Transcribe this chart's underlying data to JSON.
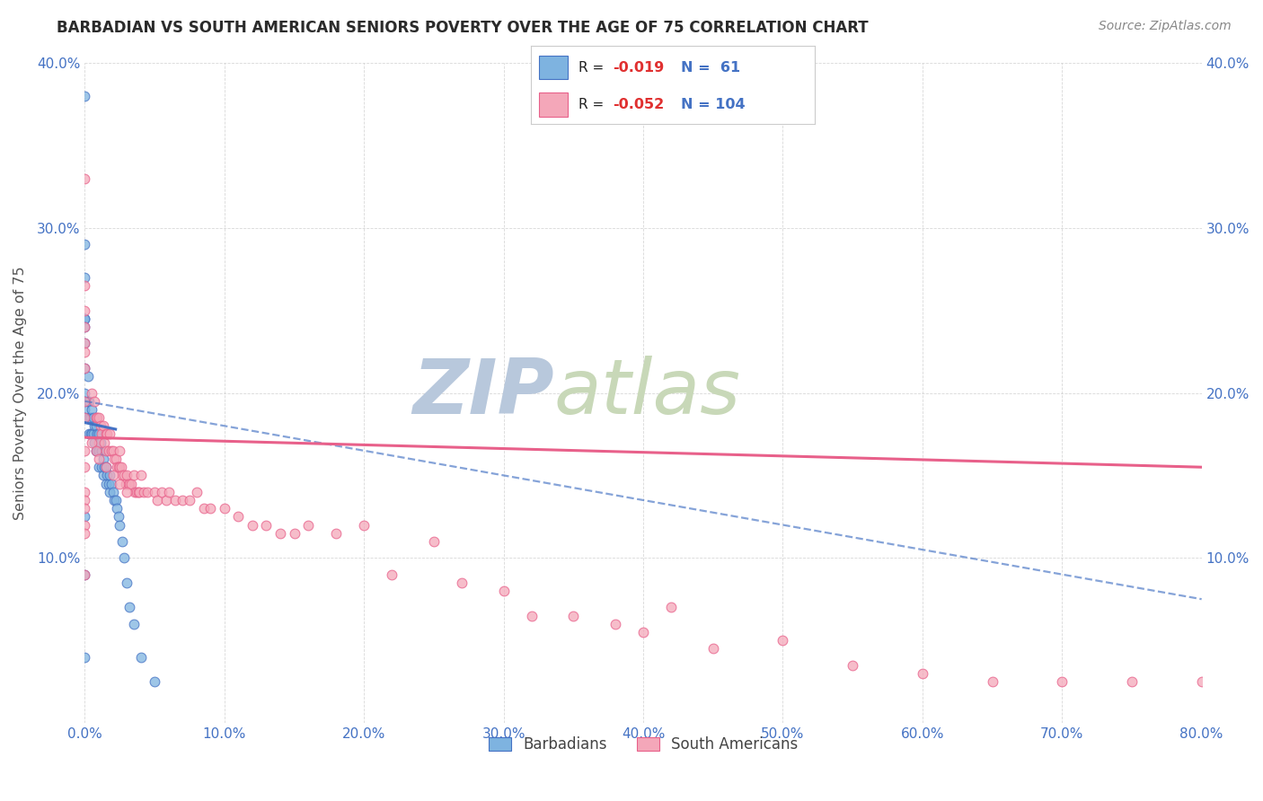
{
  "title": "BARBADIAN VS SOUTH AMERICAN SENIORS POVERTY OVER THE AGE OF 75 CORRELATION CHART",
  "source_text": "Source: ZipAtlas.com",
  "ylabel": "Seniors Poverty Over the Age of 75",
  "xlim": [
    0.0,
    0.8
  ],
  "ylim": [
    0.0,
    0.4
  ],
  "xticks": [
    0.0,
    0.1,
    0.2,
    0.3,
    0.4,
    0.5,
    0.6,
    0.7,
    0.8
  ],
  "yticks": [
    0.0,
    0.1,
    0.2,
    0.3,
    0.4
  ],
  "xticklabels": [
    "0.0%",
    "10.0%",
    "20.0%",
    "30.0%",
    "40.0%",
    "50.0%",
    "60.0%",
    "70.0%",
    "80.0%"
  ],
  "yticklabels": [
    "",
    "10.0%",
    "20.0%",
    "30.0%",
    "40.0%"
  ],
  "R_barbadian": -0.019,
  "N_barbadian": 61,
  "R_south_american": -0.052,
  "N_south_american": 104,
  "barbadian_color": "#7eb3e0",
  "south_american_color": "#f4a7b9",
  "barbadian_line_color": "#4472c4",
  "south_american_line_color": "#e8608a",
  "watermark_color": "#c8d8ea",
  "background_color": "#ffffff",
  "grid_color": "#c8c8c8",
  "title_color": "#2b2b2b",
  "tick_color": "#4472c4",
  "legend_R_color": "#e03030",
  "legend_N_color": "#4472c4",
  "barb_x": [
    0.0,
    0.0,
    0.0,
    0.0,
    0.0,
    0.0,
    0.0,
    0.0,
    0.0,
    0.0,
    0.0,
    0.0,
    0.0,
    0.0,
    0.0,
    0.002,
    0.002,
    0.003,
    0.003,
    0.003,
    0.004,
    0.004,
    0.005,
    0.005,
    0.006,
    0.006,
    0.007,
    0.007,
    0.008,
    0.008,
    0.009,
    0.009,
    0.01,
    0.01,
    0.01,
    0.011,
    0.012,
    0.012,
    0.013,
    0.013,
    0.014,
    0.015,
    0.015,
    0.016,
    0.017,
    0.018,
    0.018,
    0.019,
    0.02,
    0.021,
    0.022,
    0.023,
    0.024,
    0.025,
    0.027,
    0.028,
    0.03,
    0.032,
    0.035,
    0.04,
    0.05
  ],
  "barb_y": [
    0.38,
    0.29,
    0.27,
    0.245,
    0.245,
    0.24,
    0.23,
    0.215,
    0.2,
    0.195,
    0.19,
    0.185,
    0.125,
    0.09,
    0.04,
    0.21,
    0.195,
    0.195,
    0.185,
    0.175,
    0.185,
    0.175,
    0.19,
    0.175,
    0.185,
    0.175,
    0.18,
    0.17,
    0.18,
    0.165,
    0.175,
    0.165,
    0.175,
    0.165,
    0.155,
    0.17,
    0.165,
    0.155,
    0.16,
    0.15,
    0.155,
    0.155,
    0.145,
    0.15,
    0.145,
    0.15,
    0.14,
    0.145,
    0.14,
    0.135,
    0.135,
    0.13,
    0.125,
    0.12,
    0.11,
    0.1,
    0.085,
    0.07,
    0.06,
    0.04,
    0.025
  ],
  "sa_x": [
    0.0,
    0.0,
    0.0,
    0.0,
    0.0,
    0.0,
    0.0,
    0.0,
    0.0,
    0.0,
    0.0,
    0.005,
    0.007,
    0.008,
    0.009,
    0.01,
    0.01,
    0.011,
    0.012,
    0.013,
    0.014,
    0.015,
    0.015,
    0.016,
    0.017,
    0.018,
    0.019,
    0.02,
    0.021,
    0.022,
    0.023,
    0.024,
    0.025,
    0.025,
    0.026,
    0.027,
    0.028,
    0.029,
    0.03,
    0.031,
    0.032,
    0.033,
    0.035,
    0.036,
    0.037,
    0.038,
    0.039,
    0.04,
    0.042,
    0.045,
    0.05,
    0.052,
    0.055,
    0.058,
    0.06,
    0.065,
    0.07,
    0.075,
    0.08,
    0.085,
    0.09,
    0.1,
    0.11,
    0.12,
    0.13,
    0.14,
    0.15,
    0.16,
    0.18,
    0.2,
    0.22,
    0.25,
    0.27,
    0.3,
    0.32,
    0.35,
    0.38,
    0.4,
    0.42,
    0.45,
    0.5,
    0.55,
    0.6,
    0.65,
    0.7,
    0.75,
    0.8,
    0.0,
    0.0,
    0.0,
    0.0,
    0.0,
    0.0,
    0.005,
    0.008,
    0.01,
    0.015,
    0.02,
    0.025,
    0.03
  ],
  "sa_y": [
    0.33,
    0.265,
    0.25,
    0.24,
    0.23,
    0.225,
    0.215,
    0.195,
    0.185,
    0.165,
    0.09,
    0.2,
    0.195,
    0.185,
    0.185,
    0.185,
    0.17,
    0.18,
    0.175,
    0.18,
    0.17,
    0.175,
    0.165,
    0.175,
    0.165,
    0.175,
    0.165,
    0.165,
    0.16,
    0.16,
    0.155,
    0.155,
    0.165,
    0.155,
    0.155,
    0.15,
    0.15,
    0.145,
    0.15,
    0.145,
    0.145,
    0.145,
    0.15,
    0.14,
    0.14,
    0.14,
    0.14,
    0.15,
    0.14,
    0.14,
    0.14,
    0.135,
    0.14,
    0.135,
    0.14,
    0.135,
    0.135,
    0.135,
    0.14,
    0.13,
    0.13,
    0.13,
    0.125,
    0.12,
    0.12,
    0.115,
    0.115,
    0.12,
    0.115,
    0.12,
    0.09,
    0.11,
    0.085,
    0.08,
    0.065,
    0.065,
    0.06,
    0.055,
    0.07,
    0.045,
    0.05,
    0.035,
    0.03,
    0.025,
    0.025,
    0.025,
    0.025,
    0.155,
    0.14,
    0.135,
    0.13,
    0.12,
    0.115,
    0.17,
    0.165,
    0.16,
    0.155,
    0.15,
    0.145,
    0.14
  ],
  "barb_line_x0": 0.0,
  "barb_line_x1": 0.022,
  "barb_line_y0": 0.182,
  "barb_line_y1": 0.178,
  "sa_line_x0": 0.0,
  "sa_line_x1": 0.8,
  "sa_line_y0": 0.173,
  "sa_line_y1": 0.155,
  "dash_line_x0": 0.0,
  "dash_line_x1": 0.8,
  "dash_line_y0": 0.195,
  "dash_line_y1": 0.075,
  "watermark_zip": "ZIP",
  "watermark_atlas": "atlas",
  "legend_label1": "Barbadians",
  "legend_label2": "South Americans"
}
